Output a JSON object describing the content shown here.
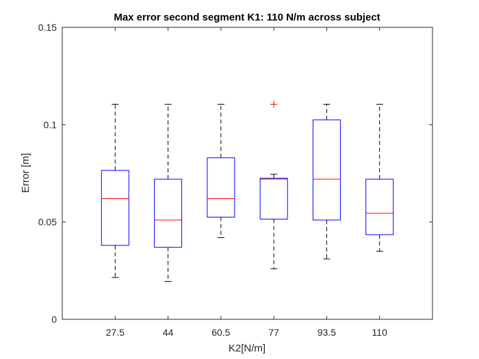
{
  "chart_data": {
    "type": "box",
    "title": "Max error second segment K1: 110 N/m across subject",
    "xlabel": "K2[N/m]",
    "ylabel": "Error [m]",
    "categories": [
      "27.5",
      "44",
      "60.5",
      "77",
      "93.5",
      "110"
    ],
    "ylim": [
      0,
      0.15
    ],
    "yticks": [
      0,
      0.05,
      0.1,
      0.15
    ],
    "ytick_labels": [
      "0",
      "0.05",
      "0.1",
      "0.15"
    ],
    "grid": false,
    "boxes": [
      {
        "category": "27.5",
        "whisker_low": 0.0215,
        "q1": 0.038,
        "median": 0.062,
        "q3": 0.0765,
        "whisker_high": 0.1105,
        "outliers": []
      },
      {
        "category": "44",
        "whisker_low": 0.0195,
        "q1": 0.037,
        "median": 0.051,
        "q3": 0.072,
        "whisker_high": 0.1105,
        "outliers": []
      },
      {
        "category": "60.5",
        "whisker_low": 0.042,
        "q1": 0.0525,
        "median": 0.062,
        "q3": 0.083,
        "whisker_high": 0.1105,
        "outliers": []
      },
      {
        "category": "77",
        "whisker_low": 0.026,
        "q1": 0.0515,
        "median": 0.072,
        "q3": 0.0725,
        "whisker_high": 0.0745,
        "outliers": [
          0.1105
        ]
      },
      {
        "category": "93.5",
        "whisker_low": 0.031,
        "q1": 0.051,
        "median": 0.072,
        "q3": 0.1025,
        "whisker_high": 0.1105,
        "outliers": []
      },
      {
        "category": "110",
        "whisker_low": 0.035,
        "q1": 0.0435,
        "median": 0.0545,
        "q3": 0.072,
        "whisker_high": 0.1105,
        "outliers": []
      }
    ],
    "colors": {
      "box": "#0000ff",
      "median": "#ff0000",
      "whisker": "#000000",
      "outlier": "#ff0000",
      "axis": "#262626"
    }
  }
}
